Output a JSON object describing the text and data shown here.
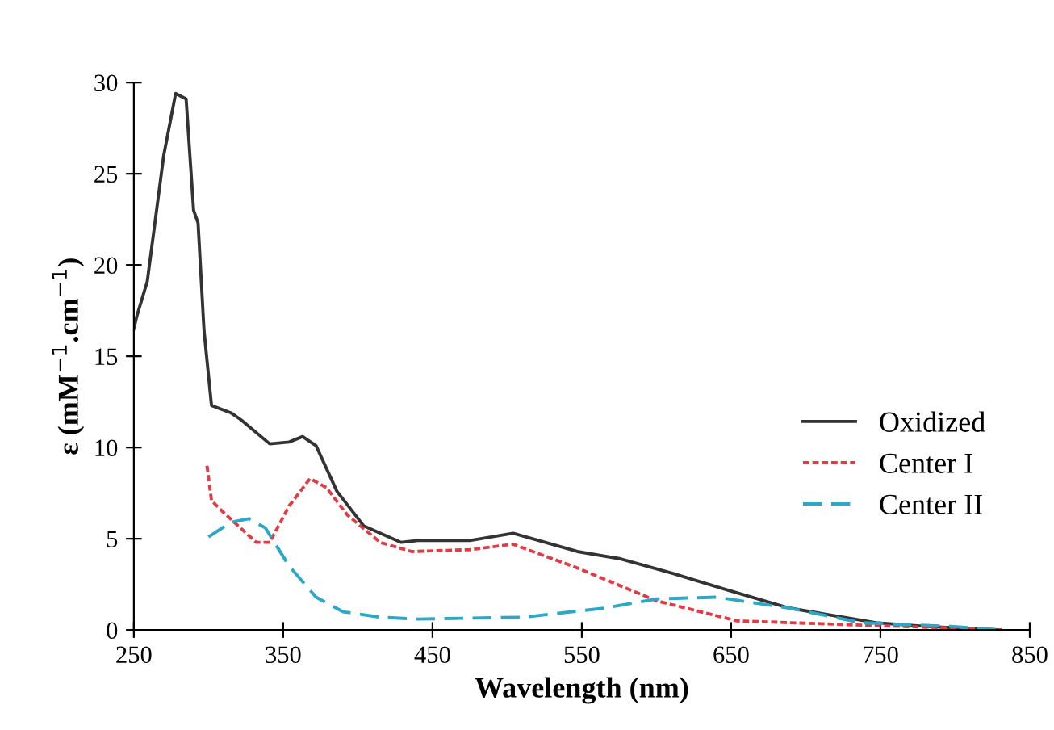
{
  "chart_data": {
    "type": "line",
    "xlabel": "Wavelength (nm)",
    "ylabel": "ε (mM$^{−1}$.cm$^{−1}$)",
    "xlim": [
      250,
      850
    ],
    "xticks": [
      250,
      350,
      450,
      550,
      650,
      750,
      850
    ],
    "ylim": [
      0,
      30
    ],
    "yticks": [
      0,
      5,
      10,
      15,
      20,
      25,
      30
    ],
    "grid": false,
    "legend": "right",
    "series": [
      {
        "name": "Oxidized",
        "color": "#333333",
        "line_style": "solid",
        "x": [
          250,
          252,
          259,
          270,
          278,
          285,
          290,
          293,
          297,
          302,
          315,
          322,
          341,
          354,
          363,
          372,
          386,
          404,
          429,
          440,
          475,
          504,
          547,
          576,
          611,
          647,
          689,
          747,
          780,
          830
        ],
        "values": [
          16.5,
          17.2,
          19.1,
          26,
          29.4,
          29.1,
          23.0,
          22.3,
          16.4,
          12.3,
          11.9,
          11.5,
          10.2,
          10.3,
          10.6,
          10.1,
          7.6,
          5.7,
          4.8,
          4.9,
          4.9,
          5.3,
          4.3,
          3.9,
          3.1,
          2.2,
          1.2,
          0.4,
          0.2,
          0
        ]
      },
      {
        "name": "Center I",
        "color": "#e03c46",
        "line_style": "dotted",
        "x": [
          299,
          302,
          308,
          320,
          332,
          341,
          354,
          368,
          379,
          393,
          415,
          436,
          475,
          504,
          547,
          600,
          654,
          726,
          800,
          830
        ],
        "values": [
          9.0,
          7.1,
          6.6,
          5.7,
          4.8,
          4.8,
          6.8,
          8.3,
          7.8,
          6.3,
          4.8,
          4.3,
          4.4,
          4.7,
          3.4,
          1.6,
          0.5,
          0.3,
          0.1,
          0
        ]
      },
      {
        "name": "Center II",
        "color": "#2ba8c8",
        "line_style": "dashed",
        "x": [
          300,
          315,
          327,
          338,
          354,
          372,
          390,
          415,
          440,
          511,
          565,
          600,
          640,
          689,
          737,
          797,
          830
        ],
        "values": [
          5.1,
          5.9,
          6.1,
          5.6,
          3.5,
          1.8,
          1.0,
          0.7,
          0.6,
          0.7,
          1.2,
          1.7,
          1.8,
          1.2,
          0.4,
          0.2,
          0
        ]
      }
    ]
  }
}
